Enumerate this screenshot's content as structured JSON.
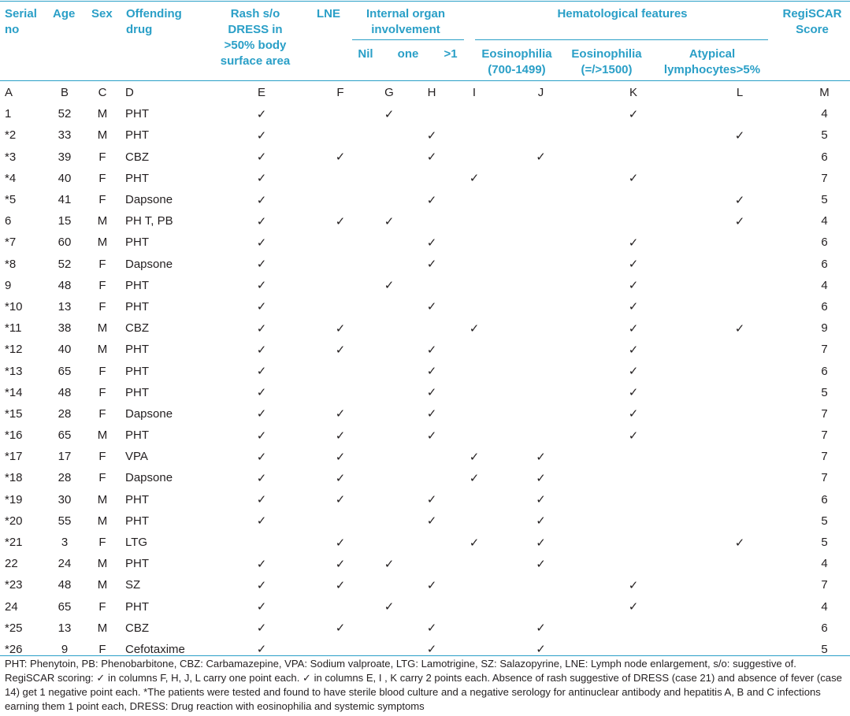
{
  "headers": {
    "serial": "Serial no",
    "age": "Age",
    "sex": "Sex",
    "drug": "Offending drug",
    "rash": "Rash s/o DRESS in >50% body surface area",
    "lne": "LNE",
    "organ_group": "Internal organ involvement",
    "organ_nil": "Nil",
    "organ_one": "one",
    "organ_more": ">1",
    "hema_group": "Hematological features",
    "eos1": "Eosinophilia (700-1499)",
    "eos2": "Eosinophilia (=/>1500)",
    "atyp": "Atypical lymphocytes>5%",
    "score": "RegiSCAR Score"
  },
  "column_letters": [
    "A",
    "B",
    "C",
    "D",
    "E",
    "F",
    "G",
    "H",
    "I",
    "J",
    "K",
    "L",
    "M"
  ],
  "check_mark": "✓",
  "rows": [
    [
      "1",
      "52",
      "M",
      "PHT",
      "✓",
      "",
      "✓",
      "",
      "",
      "",
      "✓",
      "",
      "4"
    ],
    [
      "*2",
      "33",
      "M",
      "PHT",
      "✓",
      "",
      "",
      "✓",
      "",
      "",
      "",
      "✓",
      "5"
    ],
    [
      "*3",
      "39",
      "F",
      "CBZ",
      "✓",
      "✓",
      "",
      "✓",
      "",
      "✓",
      "",
      "",
      "6"
    ],
    [
      "*4",
      "40",
      "F",
      "PHT",
      "✓",
      "",
      "",
      "",
      "✓",
      "",
      "✓",
      "",
      "7"
    ],
    [
      "*5",
      "41",
      "F",
      "Dapsone",
      "✓",
      "",
      "",
      "✓",
      "",
      "",
      "",
      "✓",
      "5"
    ],
    [
      "6",
      "15",
      "M",
      "PH T, PB",
      "✓",
      "✓",
      "✓",
      "",
      "",
      "",
      "",
      "✓",
      "4"
    ],
    [
      "*7",
      "60",
      "M",
      "PHT",
      "✓",
      "",
      "",
      "✓",
      "",
      "",
      "✓",
      "",
      "6"
    ],
    [
      "*8",
      "52",
      "F",
      "Dapsone",
      "✓",
      "",
      "",
      "✓",
      "",
      "",
      "✓",
      "",
      "6"
    ],
    [
      "9",
      "48",
      "F",
      "PHT",
      "✓",
      "",
      "✓",
      "",
      "",
      "",
      "✓",
      "",
      "4"
    ],
    [
      "*10",
      "13",
      "F",
      "PHT",
      "✓",
      "",
      "",
      "✓",
      "",
      "",
      "✓",
      "",
      "6"
    ],
    [
      "*11",
      "38",
      "M",
      "CBZ",
      "✓",
      "✓",
      "",
      "",
      "✓",
      "",
      "✓",
      "✓",
      "9"
    ],
    [
      "*12",
      "40",
      "M",
      "PHT",
      "✓",
      "✓",
      "",
      "✓",
      "",
      "",
      "✓",
      "",
      "7"
    ],
    [
      "*13",
      "65",
      "F",
      "PHT",
      "✓",
      "",
      "",
      "✓",
      "",
      "",
      "✓",
      "",
      "6"
    ],
    [
      "*14",
      "48",
      "F",
      "PHT",
      "✓",
      "",
      "",
      "✓",
      "",
      "",
      "✓",
      "",
      "5"
    ],
    [
      "*15",
      "28",
      "F",
      "Dapsone",
      "✓",
      "✓",
      "",
      "✓",
      "",
      "",
      "✓",
      "",
      "7"
    ],
    [
      "*16",
      "65",
      "M",
      "PHT",
      "✓",
      "✓",
      "",
      "✓",
      "",
      "",
      "✓",
      "",
      "7"
    ],
    [
      "*17",
      "17",
      "F",
      "VPA",
      "✓",
      "✓",
      "",
      "",
      "✓",
      "✓",
      "",
      "",
      "7"
    ],
    [
      "*18",
      "28",
      "F",
      "Dapsone",
      "✓",
      "✓",
      "",
      "",
      "✓",
      "✓",
      "",
      "",
      "7"
    ],
    [
      "*19",
      "30",
      "M",
      "PHT",
      "✓",
      "✓",
      "",
      "✓",
      "",
      "✓",
      "",
      "",
      "6"
    ],
    [
      "*20",
      "55",
      "M",
      "PHT",
      "✓",
      "",
      "",
      "✓",
      "",
      "✓",
      "",
      "",
      "5"
    ],
    [
      "*21",
      "3",
      "F",
      "LTG",
      "",
      "✓",
      "",
      "",
      "✓",
      "✓",
      "",
      "✓",
      "5"
    ],
    [
      "22",
      "24",
      "M",
      "PHT",
      "✓",
      "✓",
      "✓",
      "",
      "",
      "✓",
      "",
      "",
      "4"
    ],
    [
      "*23",
      "48",
      "M",
      "SZ",
      "✓",
      "✓",
      "",
      "✓",
      "",
      "",
      "✓",
      "",
      "7"
    ],
    [
      "24",
      "65",
      "F",
      "PHT",
      "✓",
      "",
      "✓",
      "",
      "",
      "",
      "✓",
      "",
      "4"
    ],
    [
      "*25",
      "13",
      "M",
      "CBZ",
      "✓",
      "✓",
      "",
      "✓",
      "",
      "✓",
      "",
      "",
      "6"
    ],
    [
      "*26",
      "9",
      "F",
      "Cefotaxime",
      "✓",
      "",
      "",
      "✓",
      "",
      "✓",
      "",
      "",
      "5"
    ]
  ],
  "footnote": "PHT: Phenytoin, PB: Phenobarbitone, CBZ: Carbamazepine, VPA: Sodium valproate, LTG: Lamotrigine, SZ: Salazopyrine, LNE: Lymph node enlargement, s/o: suggestive of. RegiSCAR scoring: ✓ in columns F, H, J, L carry one point each. ✓ in columns E, I , K carry 2 points each. Absence of rash suggestive of DRESS (case 21) and absence of fever (case 14) get 1 negative point each. *The patients were tested and found to have sterile blood culture and a negative serology for antinuclear antibody and hepatitis A, B and C infections earning them 1 point each, DRESS: Drug reaction with eosinophilia and systemic symptoms",
  "colors": {
    "header": "#2a9fc7",
    "text": "#231f20",
    "rule": "#2a9fc7"
  }
}
